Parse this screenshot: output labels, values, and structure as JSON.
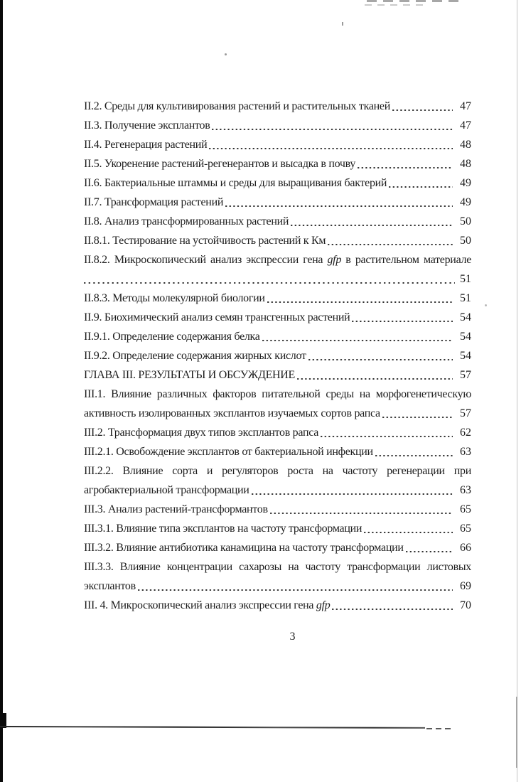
{
  "toc": {
    "lines": [
      {
        "text": "II.2. Среды для культивирования растений и растительных тканей",
        "page": "47"
      },
      {
        "text": "II.3. Получение эксплантов",
        "page": "47"
      },
      {
        "text": "II.4. Регенерация растений",
        "page": "48"
      },
      {
        "text": "II.5. Укоренение растений-регенерантов и высадка в почву",
        "page": "48"
      },
      {
        "text": "II.6. Бактериальные штаммы и среды для выращивания бактерий",
        "page": "49"
      },
      {
        "text": "II.7. Трансформация растений",
        "page": "49"
      },
      {
        "text": "II.8. Анализ трансформированных растений",
        "page": "50"
      },
      {
        "text": "II.8.1. Тестирование на устойчивость растений к Км",
        "page": "50"
      },
      {
        "pre": "II.8.2. Микроскопический анализ экспрессии гена ",
        "italic": "gfp",
        "post": " в растительном материале"
      },
      {
        "text": "",
        "page": "51"
      },
      {
        "text": "II.8.3. Методы молекулярной биологии",
        "page": "51"
      },
      {
        "text": "II.9. Биохимический анализ семян трансгенных растений",
        "page": "54"
      },
      {
        "text": "II.9.1. Определение содержания белка",
        "page": "54"
      },
      {
        "text": "II.9.2. Определение содержания жирных кислот",
        "page": "54"
      },
      {
        "text": "ГЛАВА III. РЕЗУЛЬТАТЫ И ОБСУЖДЕНИЕ",
        "page": "57"
      },
      {
        "text": "III.1. Влияние различных факторов питательной среды на морфогенетическую"
      },
      {
        "text": "активность изолированных эксплантов изучаемых сортов рапса",
        "page": "57"
      },
      {
        "text": "III.2. Трансформация двух типов эксплантов рапса",
        "page": "62"
      },
      {
        "text": "III.2.1. Освобождение эксплантов от бактериальной инфекции",
        "page": "63"
      },
      {
        "text": "III.2.2. Влияние сорта и регуляторов роста на частоту регенерации при"
      },
      {
        "text": "агробактериальной трансформации",
        "page": "63"
      },
      {
        "text": "III.3. Анализ растений-трансформантов",
        "page": "65"
      },
      {
        "text": "III.3.1. Влияние типа эксплантов на частоту трансформации",
        "page": "65"
      },
      {
        "text": "III.3.2. Влияние антибиотика канамицина на частоту трансформации",
        "page": "66"
      },
      {
        "text": "III.3.3. Влияние концентрации сахарозы на частоту трансформации листовых"
      },
      {
        "text": "эксплантов",
        "page": "69"
      },
      {
        "pre": "III. 4. Микроскопический анализ экспрессии гена ",
        "italic": "gfp",
        "page": "70"
      }
    ]
  },
  "footer": {
    "page_number": "3"
  }
}
